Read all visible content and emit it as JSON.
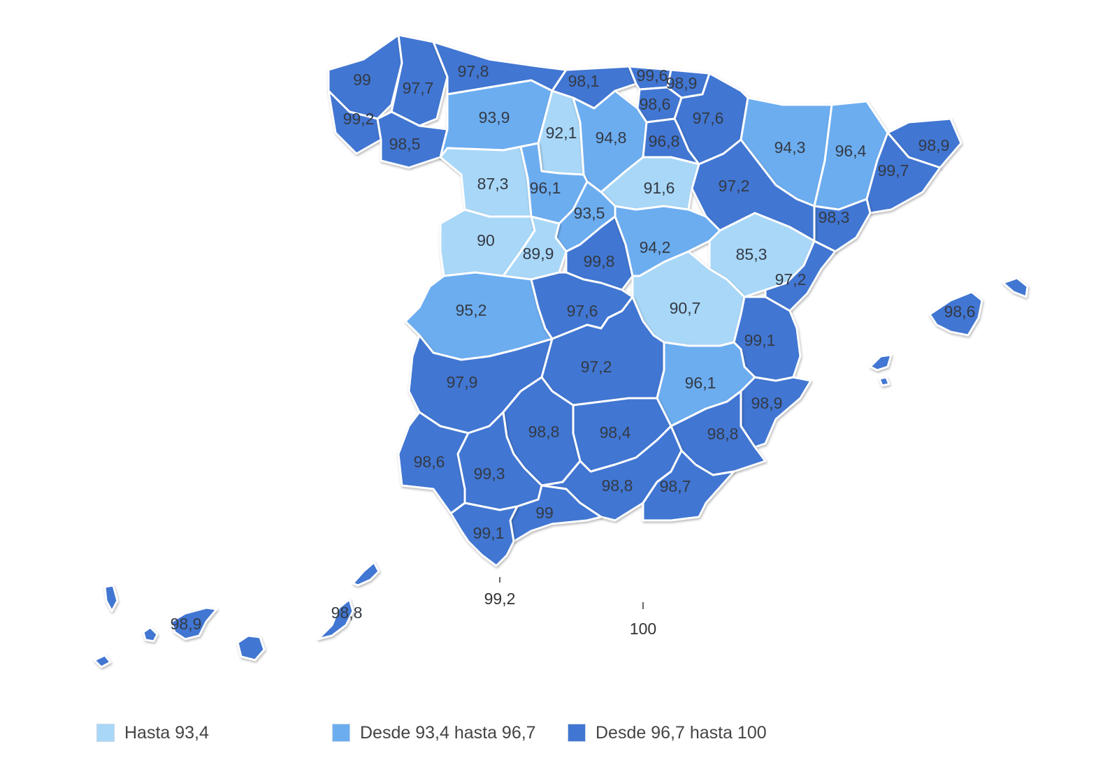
{
  "colors": {
    "light": "#a9d7f7",
    "mid": "#6cadf0",
    "dark": "#4176d2",
    "border": "#ffffff"
  },
  "provinces": [
    {
      "id": "a-coruna",
      "value": "99",
      "cls": "dark"
    },
    {
      "id": "lugo",
      "value": "97,7",
      "cls": "dark"
    },
    {
      "id": "asturias",
      "value": "97,8",
      "cls": "dark"
    },
    {
      "id": "cantabria",
      "value": "98,1",
      "cls": "dark"
    },
    {
      "id": "bizkaia",
      "value": "99,6",
      "cls": "dark"
    },
    {
      "id": "gipuzkoa",
      "value": "98,9",
      "cls": "dark"
    },
    {
      "id": "alava",
      "value": "98,6",
      "cls": "dark"
    },
    {
      "id": "navarra",
      "value": "97,6",
      "cls": "dark"
    },
    {
      "id": "pontevedra",
      "value": "99,2",
      "cls": "dark"
    },
    {
      "id": "ourense",
      "value": "98,5",
      "cls": "dark"
    },
    {
      "id": "leon",
      "value": "93,9",
      "cls": "mid"
    },
    {
      "id": "palencia",
      "value": "92,1",
      "cls": "light"
    },
    {
      "id": "burgos",
      "value": "94,8",
      "cls": "mid"
    },
    {
      "id": "la-rioja",
      "value": "96,8",
      "cls": "dark"
    },
    {
      "id": "huesca",
      "value": "94,3",
      "cls": "mid"
    },
    {
      "id": "lleida",
      "value": "96,4",
      "cls": "mid"
    },
    {
      "id": "girona",
      "value": "98,9",
      "cls": "dark"
    },
    {
      "id": "barcelona",
      "value": "99,7",
      "cls": "dark"
    },
    {
      "id": "zamora",
      "value": "87,3",
      "cls": "light"
    },
    {
      "id": "valladolid",
      "value": "96,1",
      "cls": "mid"
    },
    {
      "id": "soria",
      "value": "91,6",
      "cls": "light"
    },
    {
      "id": "zaragoza",
      "value": "97,2",
      "cls": "dark"
    },
    {
      "id": "tarragona",
      "value": "98,3",
      "cls": "dark"
    },
    {
      "id": "segovia",
      "value": "93,5",
      "cls": "mid"
    },
    {
      "id": "salamanca",
      "value": "90",
      "cls": "light"
    },
    {
      "id": "avila",
      "value": "89,9",
      "cls": "light"
    },
    {
      "id": "madrid",
      "value": "99,8",
      "cls": "dark"
    },
    {
      "id": "guadalajara",
      "value": "94,2",
      "cls": "mid"
    },
    {
      "id": "teruel",
      "value": "85,3",
      "cls": "light"
    },
    {
      "id": "castellon",
      "value": "97,2",
      "cls": "dark"
    },
    {
      "id": "caceres",
      "value": "95,2",
      "cls": "mid"
    },
    {
      "id": "toledo",
      "value": "97,6",
      "cls": "dark"
    },
    {
      "id": "cuenca",
      "value": "90,7",
      "cls": "light"
    },
    {
      "id": "valencia",
      "value": "99,1",
      "cls": "dark"
    },
    {
      "id": "badajoz",
      "value": "97,9",
      "cls": "dark"
    },
    {
      "id": "ciudad-real",
      "value": "97,2",
      "cls": "dark"
    },
    {
      "id": "albacete",
      "value": "96,1",
      "cls": "mid"
    },
    {
      "id": "alicante",
      "value": "98,9",
      "cls": "dark"
    },
    {
      "id": "cordoba",
      "value": "98,8",
      "cls": "dark"
    },
    {
      "id": "jaen",
      "value": "98,4",
      "cls": "dark"
    },
    {
      "id": "murcia",
      "value": "98,8",
      "cls": "dark"
    },
    {
      "id": "huelva",
      "value": "98,6",
      "cls": "dark"
    },
    {
      "id": "sevilla",
      "value": "99,3",
      "cls": "dark"
    },
    {
      "id": "granada",
      "value": "98,8",
      "cls": "dark"
    },
    {
      "id": "almeria",
      "value": "98,7",
      "cls": "dark"
    },
    {
      "id": "malaga",
      "value": "99",
      "cls": "dark"
    },
    {
      "id": "cadiz",
      "value": "99,1",
      "cls": "dark"
    },
    {
      "id": "baleares",
      "value": "98,6",
      "cls": "dark"
    },
    {
      "id": "santa-cruz-de-tenerife",
      "value": "98,9",
      "cls": "dark"
    },
    {
      "id": "las-palmas",
      "value": "98,8",
      "cls": "dark"
    },
    {
      "id": "ceuta",
      "value": "99,2",
      "cls": "dark"
    },
    {
      "id": "melilla",
      "value": "100",
      "cls": "dark"
    }
  ],
  "legend": [
    {
      "label": "Hasta 93,4",
      "cls": "light"
    },
    {
      "label": "Desde 93,4 hasta 96,7",
      "cls": "mid"
    },
    {
      "label": "Desde 96,7 hasta 100",
      "cls": "dark"
    }
  ]
}
